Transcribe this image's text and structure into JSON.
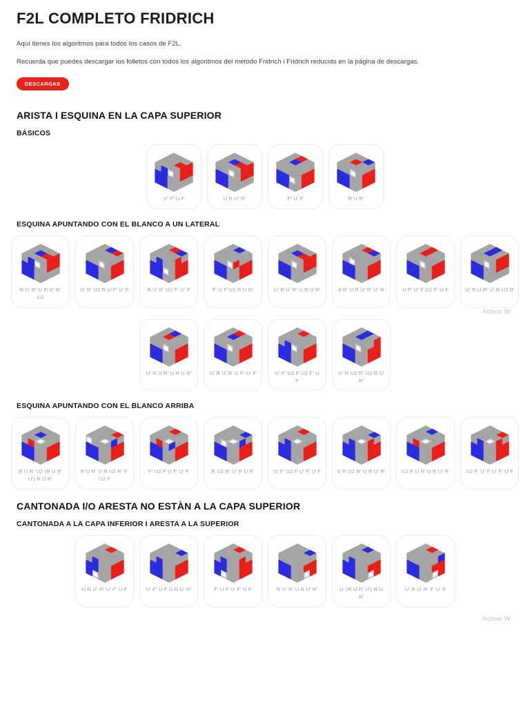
{
  "header": {
    "title": "F2L COMPLETO FRIDRICH",
    "intro1": "Aquí tienes los algoritmos para todos los casos de F2L.",
    "intro2": "Recuerda que puedes descargar los folletos con todos los algoritmos del método Fridrich i Fridrich reducido en la página de descargas.",
    "download_button": "DESCARGAS"
  },
  "watermark_text": "Activar W",
  "colors": {
    "accent_red": "#e8231d",
    "cube_red": "#ea1f1a",
    "cube_blue": "#2b2be0",
    "cube_gray": "#a4a4a4",
    "cube_white": "#ffffff"
  },
  "sections": [
    {
      "title": "ARISTA I ESQUINA EN LA CAPA SUPERIOR",
      "subsections": [
        {
          "title": "BÁSICOS",
          "rows": [
            [
              {
                "alg": "U' F' U F",
                "cube": {
                  "t": "gggggrggg",
                  "l": "gbwbbgbbg",
                  "r": "grrgrrggg"
                }
              },
              {
                "alg": "U R U' R'",
                "cube": {
                  "t": "ggggbrggg",
                  "l": "ggwbbgbbg",
                  "r": "grrgrrggg"
                }
              },
              {
                "alg": "F' U' F",
                "cube": {
                  "t": "grggbgggg",
                  "l": "gggbbwbbg",
                  "r": "ggggrrgrr"
                }
              },
              {
                "alg": "R U R'",
                "cube": {
                  "t": "ggbgrgggg",
                  "l": "ggwbbgbbg",
                  "r": "ggggrrgrr"
                }
              }
            ]
          ]
        },
        {
          "title": "ESQUINA APUNTANDO CON EL BLANCO A UN LATERAL",
          "rows": [
            [
              {
                "alg": "R U' R' U R U' R' U2",
                "cube": {
                  "t": "ggggbrggg",
                  "l": "gbwbbgbbg",
                  "r": "grrgrrggg"
                }
              },
              {
                "alg": "U' R' U2 R U F' U' F",
                "cube": {
                  "t": "gbrgggggg",
                  "l": "ggwbbgbbg",
                  "r": "ggggrrgrr"
                }
              },
              {
                "alg": "R U' R' U2 F' U' F",
                "cube": {
                  "t": "grbgggggg",
                  "l": "gbgbbwbbg",
                  "r": "grggrrgrr"
                }
              },
              {
                "alg": "F' U F U2 R U R'",
                "cube": {
                  "t": "gbggggggg",
                  "l": "ggwbbgbbg",
                  "r": "rgggrrgrr"
                }
              },
              {
                "alg": "U' R U' R' U R U R'",
                "cube": {
                  "t": "ggggbrggg",
                  "l": "ggwbbgbbg",
                  "r": "grrgrrggg"
                }
              },
              {
                "alg": "d R' U R U' R' U' R",
                "cube": {
                  "t": "grbgggggg",
                  "l": "gwgbbgbbg",
                  "r": "ggggrrgrr"
                }
              },
              {
                "alg": "U F' U' F U2 F' U F",
                "cube": {
                  "t": "grggrgggg",
                  "l": "ggwbbgbbg",
                  "r": "ggggrrgrr"
                }
              },
              {
                "alg": "U' R U R' U' R U2 R",
                "cube": {
                  "t": "gbggbgggg",
                  "l": "ggwbbgbbg",
                  "r": "grrgrrggg"
                }
              }
            ],
            [
              {
                "alg": "U' R U R' U R U R'",
                "cube": {
                  "t": "gbggrgggg",
                  "l": "ggwbbgbbg",
                  "r": "ggggrrgrr"
                }
              },
              {
                "alg": "U' R U' R' U F' U' F",
                "cube": {
                  "t": "grggbgggg",
                  "l": "ggwbbgbbg",
                  "r": "ggggrrgrr"
                }
              },
              {
                "alg": "U' F' U2 F U2 F' U F",
                "cube": {
                  "t": "grggggggg",
                  "l": "gbwbbgbbg",
                  "r": "ggggrrgrr"
                }
              },
              {
                "alg": "U' R U2 R' U2 R U' R'",
                "cube": {
                  "t": "gbggbgggg",
                  "l": "ggwbbgbbg",
                  "r": "ggrgrrgrr"
                }
              }
            ]
          ]
        },
        {
          "title": "ESQUINA APUNTANDO CON EL BLANCO ARRIBA",
          "rows": [
            [
              {
                "alg": "R U R' U2 (R U R' U') R U R'",
                "cube": {
                  "t": "ggggbgggw",
                  "l": "grgbbgbbg",
                  "r": "ggggrrgrr"
                }
              },
              {
                "alg": "R U R' U R U2 R' F' U2 F",
                "cube": {
                  "t": "ggrgggggw",
                  "l": "wggbbgbbg",
                  "r": "gbggrrgrr"
                }
              },
              {
                "alg": "F' U2 F U F' U' F",
                "cube": {
                  "t": "grggggggw",
                  "l": "grgbbgbbg",
                  "r": "bgggrrgrr"
                }
              },
              {
                "alg": "R U2 R' U' R U R'",
                "cube": {
                  "t": "ggbgggggw",
                  "l": "gwgbbgbbg",
                  "r": "gbggrrgrr"
                }
              },
              {
                "alg": "U' F' U2 F U' F' U F",
                "cube": {
                  "t": "grggggggw",
                  "l": "gbgbbgbbg",
                  "r": "ggggrrgrr"
                }
              },
              {
                "alg": "U R U2 R' U R U' R'",
                "cube": {
                  "t": "ggbgggggw",
                  "l": "gbgbbgbbg",
                  "r": "grggrrgrr"
                }
              },
              {
                "alg": "U2 R U R' U R U' R'",
                "cube": {
                  "t": "gbggggggw",
                  "l": "grgbbgbbg",
                  "r": "ggggrrgrr"
                }
              },
              {
                "alg": "U2 F' U' F U' F' U F",
                "cube": {
                  "t": "ggrgggggw",
                  "l": "gbgbbgbbg",
                  "r": "grggrrgrr"
                }
              }
            ]
          ]
        }
      ]
    },
    {
      "title": "CANTONADA I/O ARESTA NO ESTÀN A LA CAPA SUPERIOR",
      "subsections": [
        {
          "title": "CANTONADA A LA CAPA INFERIOR I ARESTA A LA SUPERIOR",
          "rows": [
            [
              {
                "alg": "U R U' R' U' F' U F",
                "cube": {
                  "t": "grggggggg",
                  "l": "gbgbbgbwg",
                  "r": "ggggrrgrr"
                }
              },
              {
                "alg": "U' F' U F U R U' R'",
                "cube": {
                  "t": "ggbgggggg",
                  "l": "gbgbbgbbg",
                  "r": "ggggrrgrr"
                }
              },
              {
                "alg": "F' U F U' F' U F",
                "cube": {
                  "t": "grggggggg",
                  "l": "gbgbbgbwg",
                  "r": "grggrrgrr"
                }
              },
              {
                "alg": "R U' R' U R U' R'",
                "cube": {
                  "t": "ggbgggggg",
                  "l": "gggbbgbbg",
                  "r": "ggggrrgwr"
                }
              },
              {
                "alg": "U' (R U R' U') R U R'",
                "cube": {
                  "t": "gbggggggg",
                  "l": "gbgbbgbbg",
                  "r": "ggggrrgwr"
                }
              },
              {
                "alg": "U' R U' R' F' U' F",
                "cube": {
                  "t": "grggggggg",
                  "l": "gggbbgbbg",
                  "r": "ggbgrrgwr"
                }
              }
            ]
          ]
        }
      ]
    }
  ]
}
